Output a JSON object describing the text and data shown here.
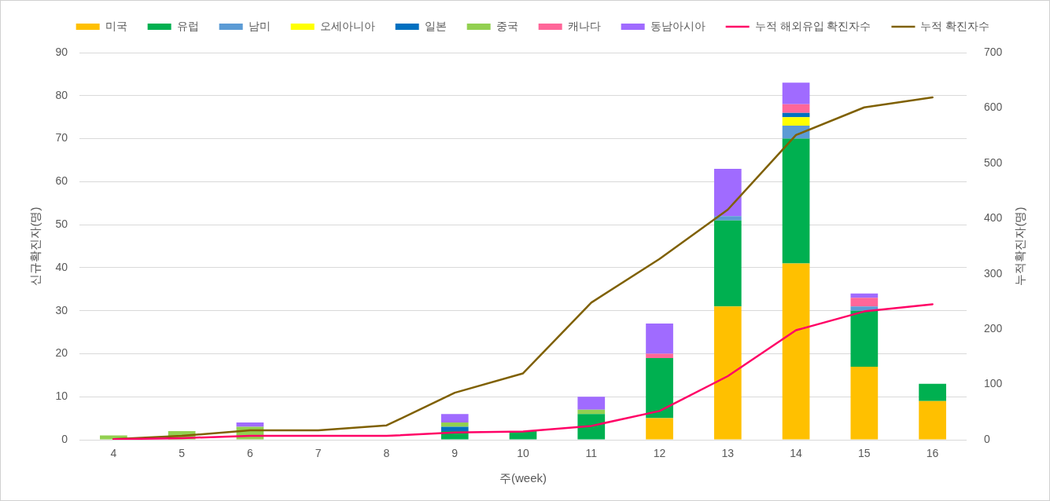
{
  "chart_data": {
    "type": "bar",
    "stacked": true,
    "xlabel": "주(week)",
    "ylabel": "신규확진자(명)",
    "y2label": "누적확진자(명)",
    "categories": [
      "4",
      "5",
      "6",
      "7",
      "8",
      "9",
      "10",
      "11",
      "12",
      "13",
      "14",
      "15",
      "16"
    ],
    "ylim": [
      0,
      90
    ],
    "yticks": [
      0,
      10,
      20,
      30,
      40,
      50,
      60,
      70,
      80,
      90
    ],
    "y2lim": [
      0,
      700
    ],
    "y2ticks": [
      0,
      100,
      200,
      300,
      400,
      500,
      600,
      700
    ],
    "grid": "y",
    "legend": "top",
    "series": [
      {
        "name": "미국",
        "color": "#ffc000",
        "values": [
          0,
          0,
          0,
          0,
          0,
          0,
          0,
          0,
          5,
          31,
          41,
          17,
          9
        ]
      },
      {
        "name": "유럽",
        "color": "#00b050",
        "values": [
          0,
          0,
          0,
          0,
          0,
          2,
          2,
          6,
          14,
          20,
          29,
          13,
          4
        ]
      },
      {
        "name": "남미",
        "color": "#5b9bd5",
        "values": [
          0,
          0,
          0,
          0,
          0,
          0,
          0,
          0,
          0,
          1,
          3,
          1,
          0
        ]
      },
      {
        "name": "오세아니아",
        "color": "#ffff00",
        "values": [
          0,
          0,
          0,
          0,
          0,
          0,
          0,
          0,
          0,
          0,
          2,
          0,
          0
        ]
      },
      {
        "name": "일본",
        "color": "#0070c0",
        "values": [
          0,
          0,
          0,
          0,
          0,
          1,
          0,
          0,
          0,
          0,
          1,
          0,
          0
        ]
      },
      {
        "name": "중국",
        "color": "#92d050",
        "values": [
          1,
          2,
          3,
          0,
          0,
          1,
          0,
          1,
          0,
          0,
          0,
          0,
          0
        ]
      },
      {
        "name": "캐나다",
        "color": "#ff6699",
        "values": [
          0,
          0,
          0,
          0,
          0,
          0,
          0,
          0,
          1,
          0,
          2,
          2,
          0
        ]
      },
      {
        "name": "동남아시아",
        "color": "#a06bff",
        "values": [
          0,
          0,
          1,
          0,
          0,
          2,
          0,
          3,
          7,
          11,
          5,
          1,
          0
        ]
      },
      {
        "name": "누적 해외유입 확진자수",
        "type": "line",
        "axis": "y2",
        "color": "#ff0066",
        "values": [
          1,
          3,
          7,
          7,
          7,
          13,
          15,
          25,
          52,
          115,
          198,
          232,
          245
        ]
      },
      {
        "name": "누적 확진자수",
        "type": "line",
        "axis": "y2",
        "color": "#7f6000",
        "values": [
          1,
          7,
          17,
          17,
          26,
          85,
          120,
          248,
          327,
          416,
          551,
          601,
          619
        ]
      }
    ]
  }
}
